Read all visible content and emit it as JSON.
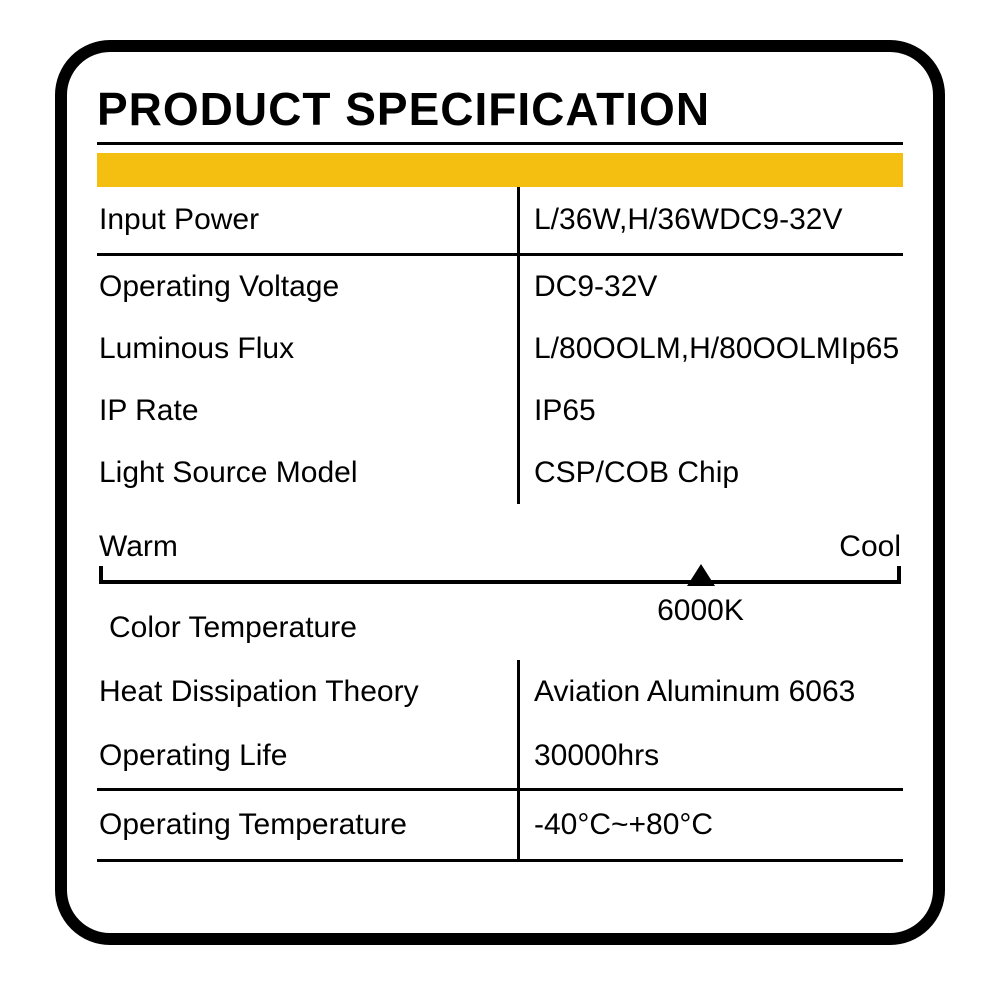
{
  "title": "PRODUCT SPECIFICATION",
  "accent_color": "#f5bf12",
  "border_color": "#000000",
  "text_color": "#000000",
  "background_color": "#ffffff",
  "title_fontsize": 46,
  "body_fontsize": 30,
  "groups": [
    {
      "rows": [
        {
          "label": "Input Power",
          "value": "L/36W,H/36WDC9-32V"
        }
      ]
    },
    {
      "rows": [
        {
          "label": "Operating Voltage",
          "value": "DC9-32V"
        },
        {
          "label": "Luminous Flux",
          "value": "L/80OOLM,H/80OOLMIp65"
        },
        {
          "label": "IP Rate",
          "value": "IP65"
        },
        {
          "label": "Light Source Model",
          "value": "CSP/COB Chip"
        }
      ]
    }
  ],
  "slider": {
    "left_label": "Warm",
    "right_label": "Cool",
    "marker_position_pct": 75,
    "value_label": "6000K"
  },
  "color_temp_label": "Color Temperature",
  "group3": {
    "rows": [
      {
        "label": "Heat Dissipation Theory",
        "value": "Aviation Aluminum 6063"
      },
      {
        "label": "Operating Life",
        "value": "30000hrs"
      }
    ]
  },
  "group4": {
    "rows": [
      {
        "label": "Operating Temperature",
        "value": "-40°C~+80°C"
      }
    ]
  }
}
